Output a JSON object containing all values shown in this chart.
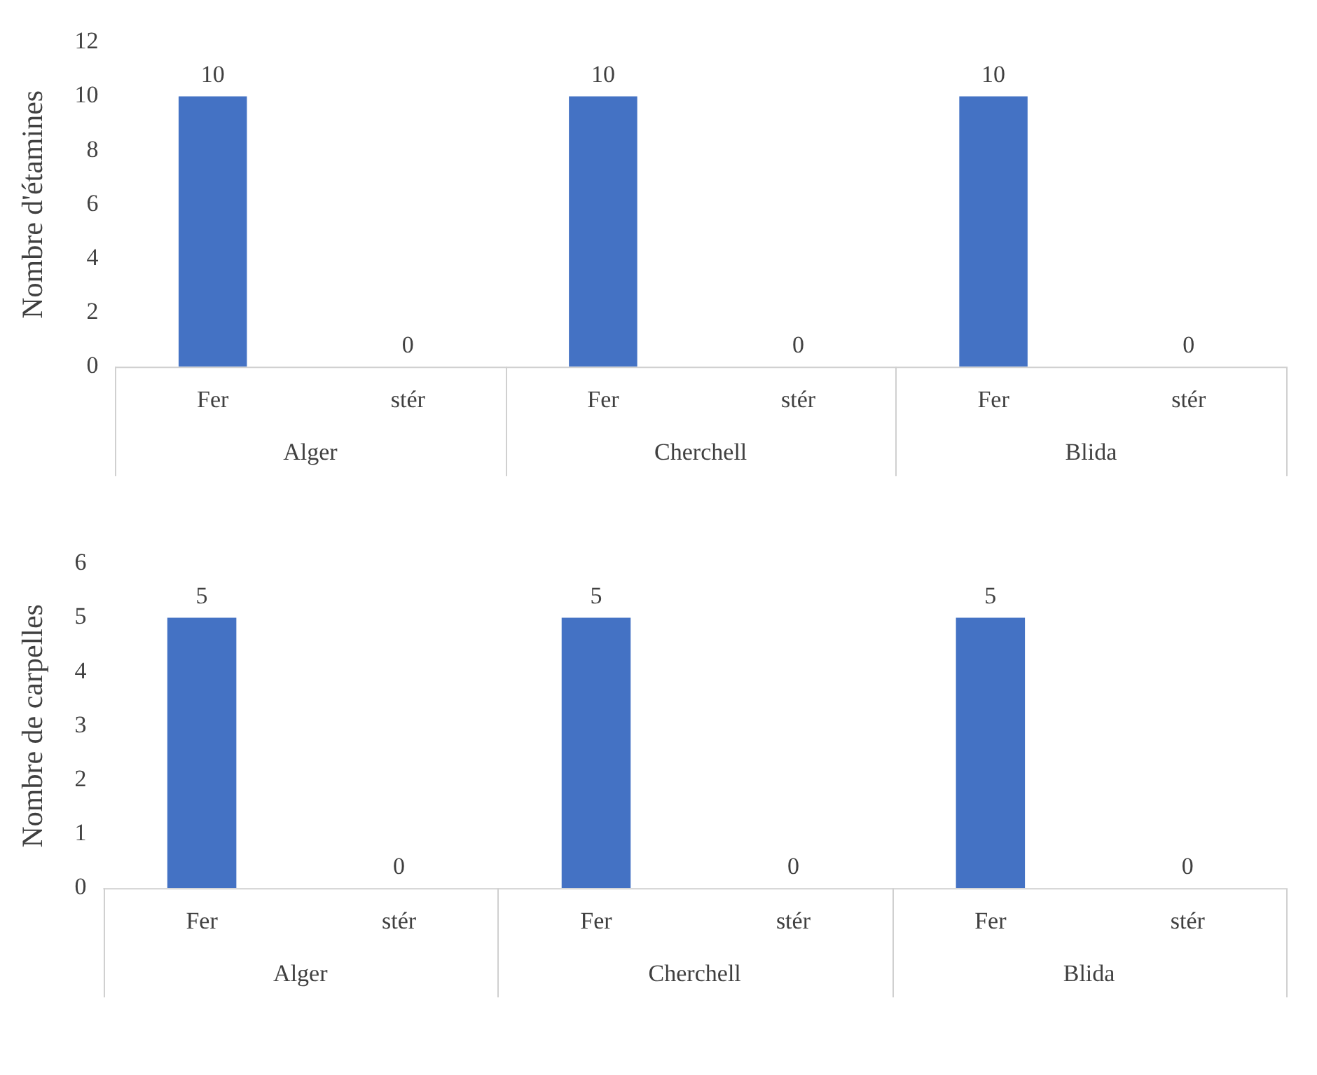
{
  "chart_data": [
    {
      "type": "bar",
      "ylabel": "Nombre d'étamines",
      "categories": [
        "Fer",
        "stér",
        "Fer",
        "stér",
        "Fer",
        "stér"
      ],
      "values": [
        10,
        0,
        10,
        0,
        10,
        0
      ],
      "color": "#4472c4",
      "ylim": [
        0,
        12
      ],
      "yticks": [
        0,
        2,
        4,
        6,
        8,
        10,
        12
      ],
      "grid": false,
      "legend": false,
      "data_labels": true,
      "annotations": [
        "Alger",
        "Cherchell",
        "Blida"
      ]
    },
    {
      "type": "bar",
      "ylabel": "Nombre de carpelles",
      "categories": [
        "Fer",
        "stér",
        "Fer",
        "stér",
        "Fer",
        "stér"
      ],
      "values": [
        5,
        0,
        5,
        0,
        5,
        0
      ],
      "color": "#4472c4",
      "ylim": [
        0,
        6
      ],
      "yticks": [
        0,
        1,
        2,
        3,
        4,
        5,
        6
      ],
      "grid": false,
      "legend": false,
      "data_labels": true,
      "annotations": [
        "Alger",
        "Cherchell",
        "Blida"
      ]
    }
  ]
}
